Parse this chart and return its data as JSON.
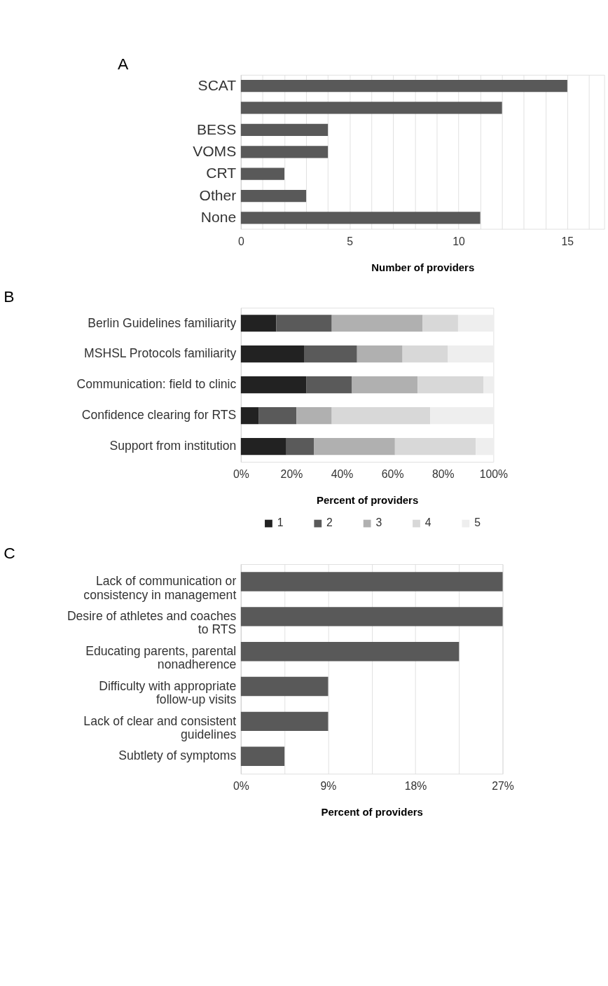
{
  "chart_data": [
    {
      "type": "bar",
      "title": "A",
      "orientation": "horizontal",
      "categories": [
        "SCAT",
        null,
        "BESS",
        "VOMS",
        "CRT",
        "Other",
        "None"
      ],
      "values": [
        15,
        12,
        4,
        4,
        2,
        3,
        11
      ],
      "color": "#595959",
      "xlabel": "Number of providers",
      "xlim": [
        0,
        16.7
      ],
      "xticks": [
        0,
        {
          "value": 1,
          "label": null
        },
        {
          "value": 2,
          "label": null
        },
        {
          "value": 3,
          "label": null
        },
        {
          "value": 4,
          "label": null
        },
        5,
        {
          "value": 6,
          "label": null
        },
        {
          "value": 7,
          "label": null
        },
        {
          "value": 8,
          "label": null
        },
        {
          "value": 9,
          "label": null
        },
        10,
        {
          "value": 11,
          "label": null
        },
        {
          "value": 12,
          "label": null
        },
        {
          "value": 13,
          "label": null
        },
        {
          "value": 14,
          "label": null
        },
        15,
        {
          "value": 16,
          "label": null
        }
      ],
      "grid": "x"
    },
    {
      "type": "bar",
      "title": "B",
      "orientation": "horizontal",
      "stacked": true,
      "categories": [
        "Berlin Guidelines familiarity",
        "MSHSL Protocols familiarity",
        "Communication: field to clinic",
        "Confidence clearing for RTS",
        "Support from institution"
      ],
      "series": [
        {
          "name": "1",
          "color": "#222222",
          "values": [
            14,
            25,
            26,
            7,
            18
          ]
        },
        {
          "name": "2",
          "color": "#5a5a5a",
          "values": [
            22,
            21,
            18,
            15,
            11
          ]
        },
        {
          "name": "3",
          "color": "#b0b0b0",
          "values": [
            36,
            18,
            26,
            14,
            32
          ]
        },
        {
          "name": "4",
          "color": "#d8d8d8",
          "values": [
            14,
            18,
            26,
            39,
            32
          ]
        },
        {
          "name": "5",
          "color": "#eeeeee",
          "values": [
            14,
            18,
            4,
            25,
            7
          ]
        }
      ],
      "xlabel": "Percent of providers",
      "xlim": [
        0,
        100
      ],
      "xticks": [
        {
          "value": 0,
          "label": "0%"
        },
        {
          "value": 20,
          "label": "20%"
        },
        {
          "value": 40,
          "label": "40%"
        },
        {
          "value": 60,
          "label": "60%"
        },
        {
          "value": 80,
          "label": "80%"
        },
        {
          "value": 100,
          "label": "100%"
        }
      ],
      "legend": "bottom"
    },
    {
      "type": "bar",
      "title": "C",
      "orientation": "horizontal",
      "categories": [
        "Lack of communication or\nconsistency in management",
        "Desire of athletes and coaches\nto RTS",
        "Educating parents, parental\nnonadherence",
        "Difficulty with appropriate\nfollow-up visits",
        "Lack of clear and consistent\nguidelines",
        "Subtlety of symptoms"
      ],
      "values": [
        27,
        27,
        22.5,
        9,
        9,
        4.5
      ],
      "color": "#595959",
      "xlabel": "Percent of providers",
      "xlim": [
        0,
        27
      ],
      "xticks": [
        {
          "value": 0,
          "label": "0%"
        },
        {
          "value": 4.5,
          "label": null
        },
        {
          "value": 9,
          "label": "9%"
        },
        {
          "value": 13.5,
          "label": null
        },
        {
          "value": 18,
          "label": "18%"
        },
        {
          "value": 22.5,
          "label": null
        },
        {
          "value": 27,
          "label": "27%"
        }
      ],
      "grid": "x"
    }
  ]
}
